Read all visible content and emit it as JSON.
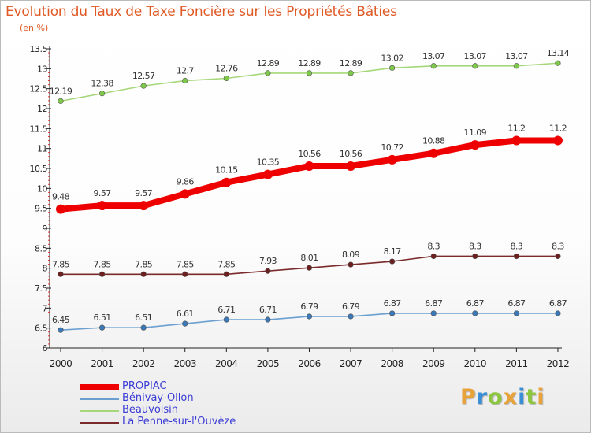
{
  "title": "Evolution du Taux de Taxe Foncière sur les Propriétés Bâties",
  "subtitle": "(en %)",
  "brand": {
    "letters": [
      "P",
      "r",
      "o",
      "x",
      "i",
      "t",
      "i"
    ],
    "colors": [
      "#e8a23a",
      "#3a8ed6",
      "#8cc63e",
      "#e8a23a",
      "#3a8ed6",
      "#8cc63e",
      "#e8a23a"
    ]
  },
  "chart_data": {
    "type": "line",
    "title": "Evolution du Taux de Taxe Foncière sur les Propriétés Bâties",
    "ylabel": "(en %)",
    "xlabel": "",
    "x": [
      "2000",
      "2001",
      "2002",
      "2003",
      "2004",
      "2005",
      "2006",
      "2007",
      "2008",
      "2009",
      "2010",
      "2011",
      "2012"
    ],
    "ylim": [
      6,
      13.5
    ],
    "yticks": [
      "6",
      "6.5",
      "7",
      "7.5",
      "8",
      "8.5",
      "9",
      "9.5",
      "10",
      "10.5",
      "11",
      "11.5",
      "12",
      "12.5",
      "13",
      "13.5"
    ],
    "grid": false,
    "legend_position": "bottom-left",
    "series": [
      {
        "name": "PROPIAC",
        "color": "#ee0000",
        "marker_color": "#ee0000",
        "emphasis": "thick",
        "values": [
          9.48,
          9.57,
          9.57,
          9.86,
          10.15,
          10.35,
          10.56,
          10.56,
          10.72,
          10.88,
          11.09,
          11.2,
          11.2
        ],
        "labels": [
          "9.48",
          "9.57",
          "9.57",
          "9.86",
          "10.15",
          "10.35",
          "10.56",
          "10.56",
          "10.72",
          "10.88",
          "11.09",
          "11.2",
          "11.2"
        ]
      },
      {
        "name": "Bénivay-Ollon",
        "color": "#6a9fd0",
        "marker_color": "#3a78b8",
        "emphasis": "normal",
        "values": [
          6.45,
          6.51,
          6.51,
          6.61,
          6.71,
          6.71,
          6.79,
          6.79,
          6.87,
          6.87,
          6.87,
          6.87,
          6.87
        ],
        "labels": [
          "6.45",
          "6.51",
          "6.51",
          "6.61",
          "6.71",
          "6.71",
          "6.79",
          "6.79",
          "6.87",
          "6.87",
          "6.87",
          "6.87",
          "6.87"
        ]
      },
      {
        "name": "Beauvoisin",
        "color": "#a6d77a",
        "marker_color": "#7ec94a",
        "emphasis": "normal",
        "values": [
          12.19,
          12.38,
          12.57,
          12.7,
          12.76,
          12.89,
          12.89,
          12.89,
          13.02,
          13.07,
          13.07,
          13.07,
          13.14
        ],
        "labels": [
          "12.19",
          "12.38",
          "12.57",
          "12.7",
          "12.76",
          "12.89",
          "12.89",
          "12.89",
          "13.02",
          "13.07",
          "13.07",
          "13.07",
          "13.14"
        ]
      },
      {
        "name": "La Penne-sur-l'Ouvèze",
        "color": "#7a2a2a",
        "marker_color": "#6b1f1f",
        "emphasis": "normal",
        "values": [
          7.85,
          7.85,
          7.85,
          7.85,
          7.85,
          7.93,
          8.01,
          8.09,
          8.17,
          8.3,
          8.3,
          8.3,
          8.3
        ],
        "labels": [
          "7.85",
          "7.85",
          "7.85",
          "7.85",
          "7.85",
          "7.93",
          "8.01",
          "8.09",
          "8.17",
          "8.3",
          "8.3",
          "8.3",
          "8.3"
        ]
      }
    ]
  }
}
